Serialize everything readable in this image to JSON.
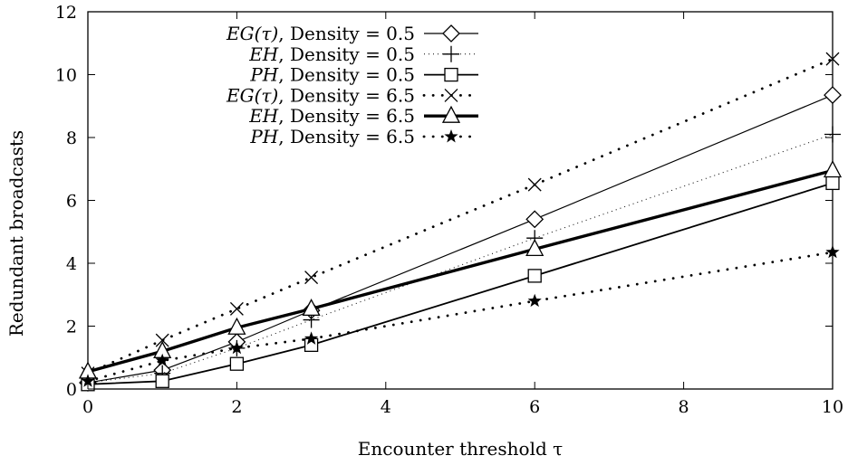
{
  "chart_data": {
    "type": "line",
    "xlabel": "Encounter threshold τ",
    "ylabel": "Redundant broadcasts",
    "xlim": [
      0,
      10
    ],
    "ylim": [
      0,
      12
    ],
    "xticks": [
      0,
      2,
      4,
      6,
      8,
      10
    ],
    "yticks": [
      0,
      2,
      4,
      6,
      8,
      10,
      12
    ],
    "x": [
      0,
      1,
      2,
      3,
      6,
      10
    ],
    "grid": false,
    "legend_position": "top-center",
    "series": [
      {
        "name": "EG(τ), Density = 0.5",
        "math": "EG(τ)",
        "density_text": ", Density = 0.5",
        "marker": "diamond",
        "line": "thin-solid",
        "values": [
          0.2,
          0.6,
          1.5,
          2.5,
          5.4,
          9.35
        ]
      },
      {
        "name": "EH, Density = 0.5",
        "math": "EH",
        "density_text": ", Density = 0.5",
        "marker": "plus",
        "line": "fine-dotted",
        "values": [
          0.2,
          0.5,
          1.3,
          2.2,
          4.8,
          8.1
        ]
      },
      {
        "name": "PH, Density = 0.5",
        "math": "PH",
        "density_text": ", Density = 0.5",
        "marker": "square",
        "line": "solid",
        "values": [
          0.15,
          0.25,
          0.8,
          1.4,
          3.6,
          6.55
        ]
      },
      {
        "name": "EG(τ), Density = 6.5",
        "math": "EG(τ)",
        "density_text": ", Density = 6.5",
        "marker": "cross",
        "line": "thick-dotted",
        "values": [
          0.5,
          1.55,
          2.55,
          3.55,
          6.5,
          10.5
        ]
      },
      {
        "name": "EH, Density = 6.5",
        "math": "EH",
        "density_text": ", Density = 6.5",
        "marker": "triangle",
        "line": "thick-solid",
        "values": [
          0.55,
          1.2,
          1.95,
          2.55,
          4.45,
          6.95
        ]
      },
      {
        "name": "PH, Density = 6.5",
        "math": "PH",
        "density_text": ", Density = 6.5",
        "marker": "star",
        "line": "thick-dotted",
        "values": [
          0.25,
          0.9,
          1.3,
          1.6,
          2.8,
          4.35
        ]
      }
    ]
  }
}
